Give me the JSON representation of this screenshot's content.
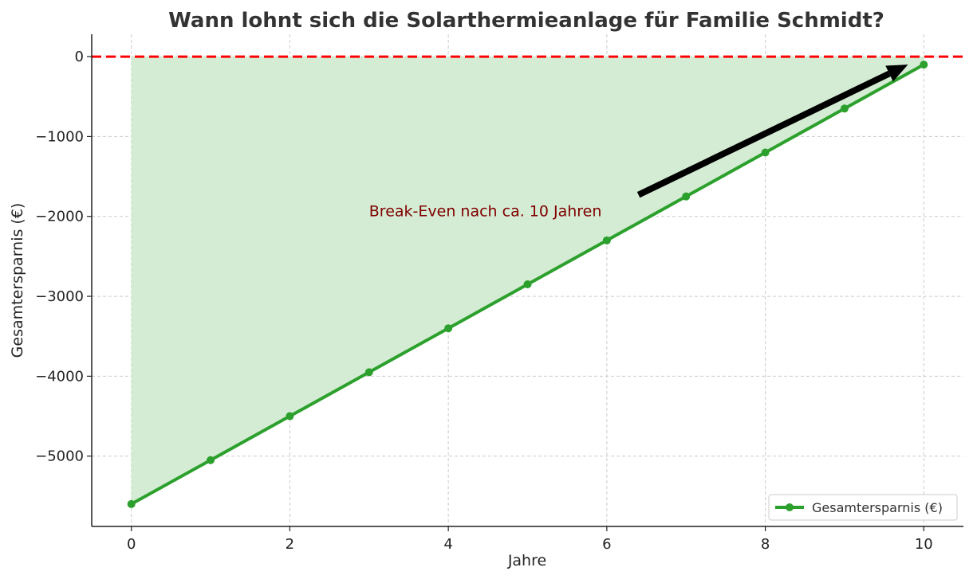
{
  "chart_data": {
    "type": "line",
    "title": "Wann lohnt sich die Solarthermieanlage für Familie Schmidt?",
    "xlabel": "Jahre",
    "ylabel": "Gesamtersparnis (€)",
    "xlim": [
      -0.5,
      10.5
    ],
    "ylim": [
      -5880,
      280
    ],
    "xticks": [
      0,
      2,
      4,
      6,
      8,
      10
    ],
    "yticks": [
      -5000,
      -4000,
      -3000,
      -2000,
      -1000,
      0
    ],
    "xtick_labels": [
      "0",
      "2",
      "4",
      "6",
      "8",
      "10"
    ],
    "ytick_labels": [
      "−5000",
      "−4000",
      "−3000",
      "−2000",
      "−1000",
      "0"
    ],
    "grid": true,
    "legend_position": "bottom-right",
    "series": [
      {
        "name": "Gesamtersparnis (€)",
        "color": "#2ca02c",
        "x": [
          0,
          1,
          2,
          3,
          4,
          5,
          6,
          7,
          8,
          9,
          10
        ],
        "y": [
          -5600,
          -5050,
          -4500,
          -3950,
          -3400,
          -2850,
          -2300,
          -1750,
          -1200,
          -650,
          -100
        ]
      }
    ],
    "fill_color": "#d4ecd4",
    "reference_line": {
      "y": 0,
      "color": "#ff0000",
      "style": "dashed"
    },
    "annotation": {
      "text": "Break-Even nach ca. 10 Jahren",
      "color": "#800000",
      "text_x": 3,
      "text_y": -2000,
      "arrow_from": [
        6.4,
        -1730
      ],
      "arrow_to": [
        9.8,
        -100
      ]
    }
  }
}
